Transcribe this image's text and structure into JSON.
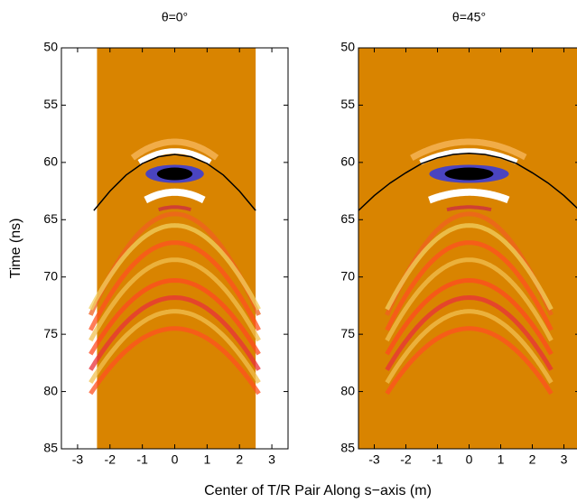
{
  "chart_data": [
    {
      "type": "image",
      "title": "θ=0°",
      "ylabel": "Time (ns)",
      "xlabel": "Center of T/R Pair Along s−axis (m)",
      "xlim": [
        -3.5,
        3.5
      ],
      "xticks": [
        -3,
        -2,
        -1,
        0,
        1,
        2,
        3
      ],
      "ylim": [
        50,
        85
      ],
      "yticks": [
        50,
        55,
        60,
        65,
        70,
        75,
        80,
        85
      ],
      "yreverse": true,
      "image_xlim": [
        -2.4,
        2.5
      ],
      "color": "#d98400",
      "series": [
        {
          "color": "#000000",
          "x": [
            -2.5,
            -2,
            -1.5,
            -1,
            -0.5,
            0,
            0.5,
            1,
            1.5,
            2,
            2.5
          ],
          "values": [
            64.2,
            62.5,
            61.1,
            60.1,
            59.5,
            59.3,
            59.5,
            60.1,
            61.1,
            62.5,
            64.2
          ]
        }
      ]
    },
    {
      "type": "image",
      "title": "θ=45°",
      "xlim": [
        -3.5,
        3.5
      ],
      "xticks": [
        -3,
        -2,
        -1,
        0,
        1,
        2,
        3
      ],
      "ylim": [
        50,
        85
      ],
      "yticks": [
        50,
        55,
        60,
        65,
        70,
        75,
        80,
        85
      ],
      "yreverse": true,
      "image_xlim": [
        -3.5,
        3.5
      ],
      "color": "#d98400",
      "series": [
        {
          "color": "#000000",
          "x": [
            -3.5,
            -3,
            -2.5,
            -2,
            -1.5,
            -1,
            -0.5,
            0,
            0.5,
            1,
            1.5,
            2,
            2.5,
            3,
            3.5
          ],
          "values": [
            64.2,
            62.9,
            61.8,
            60.9,
            60.1,
            59.6,
            59.3,
            59.2,
            59.3,
            59.6,
            60.1,
            60.9,
            61.8,
            62.9,
            64.2
          ]
        }
      ]
    }
  ]
}
